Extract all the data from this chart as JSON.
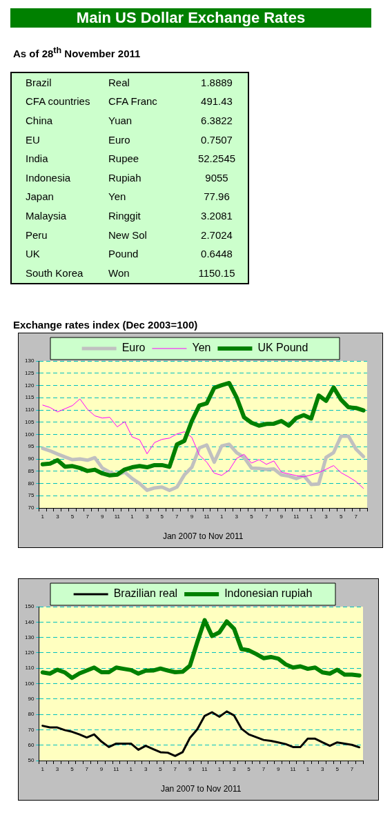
{
  "chart_data": [
    {
      "type": "other",
      "title": "Main US Dollar Exchange Rates",
      "subtitle": "As of 28$^{th}$ November 2011",
      "categories": [
        "Brazil",
        "CFA countries",
        "China",
        "EU",
        "India",
        "Indonesia",
        "Japan",
        "Malaysia",
        "Peru",
        "UK",
        "South Korea"
      ],
      "y2_categories": [
        "Real",
        "CFA Franc",
        "Yuan",
        "Euro",
        "Rupee",
        "Rupiah",
        "Yen",
        "Ringgit",
        "New Sol",
        "Pound",
        "Won"
      ],
      "values": [
        1.8889,
        491.43,
        6.3822,
        0.7507,
        52.2545,
        9055,
        77.96,
        3.2081,
        2.7024,
        0.6448,
        1150.15
      ],
      "data_labels": true
    },
    {
      "type": "line",
      "title": "Exchange rates index (Dec 2003=100)",
      "xlabel": "Jan 2007 to Nov 2011",
      "categories": [
        "1",
        null,
        "3",
        null,
        "5",
        null,
        "7",
        null,
        "9",
        null,
        "11",
        null,
        "1",
        null,
        "3",
        null,
        "5",
        null,
        "7",
        null,
        "9",
        null,
        "11",
        null,
        "1",
        null,
        "3",
        null,
        "5",
        null,
        "7",
        null,
        "9",
        null,
        "11",
        null,
        "1",
        null,
        "3",
        null,
        "5",
        null,
        "7",
        null
      ],
      "series": [
        {
          "name": "Euro",
          "color": "#c0c0c0",
          "values": [
            94.3,
            93.3,
            92,
            90.8,
            89.7,
            90,
            89.5,
            90.5,
            86.3,
            84.6,
            83.5,
            84.6,
            82,
            80,
            77.2,
            78.2,
            78.5,
            77.2,
            78.5,
            83.5,
            86.6,
            94.5,
            95.7,
            88.7,
            95.3,
            96,
            92.6,
            90.7,
            86.3,
            86.1,
            85.7,
            85.9,
            83.5,
            83,
            82,
            83.2,
            79.6,
            79.8,
            90.7,
            92.6,
            99.3,
            99.3,
            94,
            91
          ]
        },
        {
          "name": "Yen",
          "color": "#ff00ff",
          "values": [
            112,
            111,
            109.2,
            110.5,
            111.8,
            114.5,
            110.3,
            107.6,
            106.7,
            107,
            103.1,
            105.2,
            99,
            97.8,
            92.1,
            96.7,
            98,
            98.5,
            100.2,
            101.1,
            98.8,
            91.6,
            88.7,
            84.2,
            83.3,
            85.4,
            90.2,
            91.9,
            88.3,
            89.7,
            87.8,
            89.2,
            84.6,
            83.9,
            83.2,
            82.7,
            83.5,
            84.4,
            85.8,
            87.3,
            84.4,
            82.7,
            80.8,
            78
          ]
        },
        {
          "name": "UK Pound",
          "color": "#008000",
          "values": [
            87.8,
            88.1,
            89.5,
            86.8,
            87.1,
            86.3,
            85.1,
            85.6,
            84.1,
            83.3,
            83.6,
            85.7,
            86.6,
            87.1,
            86.6,
            87.5,
            87.5,
            86.8,
            95.9,
            97.4,
            105.5,
            111.8,
            112.7,
            119,
            120.1,
            121,
            115.1,
            107,
            104.8,
            103.6,
            104.3,
            104.4,
            105.5,
            103.6,
            106.7,
            107.9,
            106.5,
            115.9,
            113.7,
            119.2,
            114.2,
            111.1,
            110.8,
            109.8
          ]
        }
      ],
      "ylim": [
        70,
        130
      ],
      "yticks": [
        70,
        75,
        80,
        85,
        90,
        95,
        100,
        105,
        110,
        115,
        120,
        125,
        130
      ],
      "grid": "y",
      "legend": "top",
      "marker": "none",
      "line_style": "solid"
    },
    {
      "type": "line",
      "xlabel": "Jan 2007 to Nov 2011",
      "categories": [
        "1",
        null,
        "3",
        null,
        "5",
        null,
        "7",
        null,
        "9",
        null,
        "11",
        null,
        "1",
        null,
        "3",
        null,
        "5",
        null,
        "7",
        null,
        "9",
        null,
        "11",
        null,
        "1",
        null,
        "3",
        null,
        "5",
        null,
        "7",
        null,
        "9",
        null,
        "11",
        null,
        "1",
        null,
        "3",
        null,
        "5",
        null,
        "7",
        null
      ],
      "series": [
        {
          "name": "Brazilian real",
          "color": "#000000",
          "values": [
            72.6,
            71.5,
            71.5,
            69.8,
            68.7,
            67,
            65,
            67,
            62.3,
            58.8,
            61,
            61,
            61,
            57,
            59.6,
            57.5,
            55.4,
            55.1,
            53,
            55.4,
            64.7,
            70.3,
            79,
            81.4,
            78.5,
            81.9,
            79.3,
            70.7,
            67,
            65.2,
            63.4,
            62.8,
            61.8,
            60.7,
            58.8,
            58.8,
            64.2,
            64.2,
            61.8,
            59.6,
            61.8,
            61,
            60.2,
            58.6
          ]
        },
        {
          "name": "Indonesian rupiah",
          "color": "#008000",
          "values": [
            107.3,
            106.5,
            109,
            107.3,
            103.7,
            106.6,
            108.5,
            110.4,
            107.4,
            107.4,
            110.4,
            109.6,
            108.8,
            106.5,
            108.4,
            108.5,
            109.8,
            108.5,
            107.4,
            107.7,
            111.6,
            126.9,
            141.2,
            130.9,
            133.3,
            140.4,
            135.6,
            122.4,
            121.6,
            119.2,
            116.5,
            117.3,
            116.2,
            112.5,
            110.4,
            111.2,
            109.6,
            110.4,
            107.3,
            106.5,
            109,
            105.8,
            105.8,
            105.3
          ]
        }
      ],
      "ylim": [
        50,
        150
      ],
      "yticks": [
        50,
        60,
        70,
        80,
        90,
        100,
        110,
        120,
        130,
        140,
        150
      ],
      "grid": "y",
      "legend": "top",
      "marker": "none",
      "line_style": "solid"
    }
  ]
}
